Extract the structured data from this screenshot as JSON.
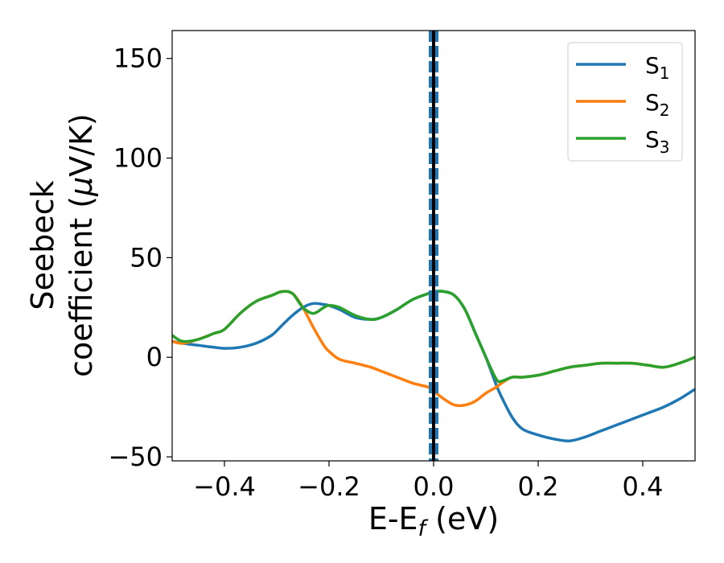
{
  "chart_data": {
    "type": "line",
    "xlabel": {
      "base": "E-E",
      "sub": "f",
      "suffix": " (eV)"
    },
    "ylabel": {
      "line1": "Seebeck",
      "line2_pre": "coefficient  (",
      "mu": "μ",
      "line2_post": "V/K)"
    },
    "xlim": [
      -0.5,
      0.5
    ],
    "ylim": [
      -52,
      164
    ],
    "xticks": [
      -0.4,
      -0.2,
      0.0,
      0.2,
      0.4
    ],
    "xtick_labels": [
      "−0.4",
      "−0.2",
      "0.0",
      "0.2",
      "0.4"
    ],
    "yticks": [
      -50,
      0,
      50,
      100,
      150
    ],
    "ytick_labels": [
      "−50",
      "0",
      "50",
      "100",
      "150"
    ],
    "grid": false,
    "legend_position": "top-right",
    "fermi_line": {
      "x": 0.0,
      "color": "#000000",
      "dash_color": "#1f77b4"
    },
    "series": [
      {
        "name": "S",
        "sub": "1",
        "color": "#1f77b4",
        "x": [
          -0.5,
          -0.48,
          -0.45,
          -0.42,
          -0.4,
          -0.37,
          -0.34,
          -0.31,
          -0.29,
          -0.27,
          -0.25,
          -0.23,
          -0.21,
          -0.2,
          -0.18,
          -0.15,
          -0.12,
          -0.1,
          -0.07,
          -0.04,
          -0.01,
          0.0,
          0.02,
          0.04,
          0.06,
          0.08,
          0.1,
          0.12,
          0.13,
          0.15,
          0.17,
          0.2,
          0.23,
          0.26,
          0.29,
          0.32,
          0.35,
          0.38,
          0.41,
          0.44,
          0.47,
          0.5
        ],
        "y": [
          8,
          7,
          6,
          5,
          4.5,
          5,
          7,
          11,
          16,
          21,
          25,
          27,
          26.5,
          26,
          24,
          20,
          19,
          20,
          24,
          29,
          32,
          33,
          33,
          31,
          24,
          12,
          0,
          -14,
          -20,
          -30,
          -36,
          -39,
          -41,
          -42,
          -40,
          -37,
          -34,
          -31,
          -28,
          -25,
          -21,
          -16
        ]
      },
      {
        "name": "S",
        "sub": "2",
        "color": "#ff7f0e",
        "x": [
          -0.5,
          -0.48,
          -0.45,
          -0.42,
          -0.4,
          -0.37,
          -0.34,
          -0.31,
          -0.29,
          -0.27,
          -0.25,
          -0.23,
          -0.21,
          -0.2,
          -0.18,
          -0.15,
          -0.12,
          -0.1,
          -0.07,
          -0.04,
          -0.01,
          0.0,
          0.02,
          0.04,
          0.06,
          0.08,
          0.1,
          0.12,
          0.13,
          0.15,
          0.17,
          0.2,
          0.23,
          0.26,
          0.29,
          0.32,
          0.35,
          0.38,
          0.41,
          0.44,
          0.47,
          0.5
        ],
        "y": [
          8,
          7,
          9,
          12,
          14,
          22,
          28,
          31,
          33,
          32,
          25,
          15,
          6,
          3,
          -1,
          -3,
          -5,
          -7,
          -10,
          -13,
          -15,
          -17,
          -21,
          -24,
          -24,
          -22,
          -18,
          -15,
          -13,
          -10,
          -10,
          -9,
          -7,
          -5,
          -4,
          -3,
          -3,
          -3,
          -4,
          -5,
          -3,
          0
        ]
      },
      {
        "name": "S",
        "sub": "3",
        "color": "#2ca02c",
        "x": [
          -0.5,
          -0.48,
          -0.45,
          -0.42,
          -0.4,
          -0.37,
          -0.34,
          -0.31,
          -0.29,
          -0.27,
          -0.25,
          -0.23,
          -0.21,
          -0.2,
          -0.18,
          -0.15,
          -0.12,
          -0.1,
          -0.07,
          -0.04,
          -0.01,
          0.0,
          0.02,
          0.04,
          0.06,
          0.08,
          0.1,
          0.12,
          0.13,
          0.15,
          0.17,
          0.2,
          0.23,
          0.26,
          0.29,
          0.32,
          0.35,
          0.38,
          0.41,
          0.44,
          0.47,
          0.5
        ],
        "y": [
          11,
          8,
          9,
          12,
          14,
          22,
          28,
          31,
          33,
          32,
          25,
          22,
          25,
          26,
          25,
          21,
          19,
          20,
          24,
          29,
          32,
          33,
          33,
          31,
          24,
          12,
          0,
          -11,
          -12,
          -10,
          -10,
          -9,
          -7,
          -5,
          -4,
          -3,
          -3,
          -3,
          -4,
          -5,
          -3,
          0
        ]
      }
    ]
  }
}
